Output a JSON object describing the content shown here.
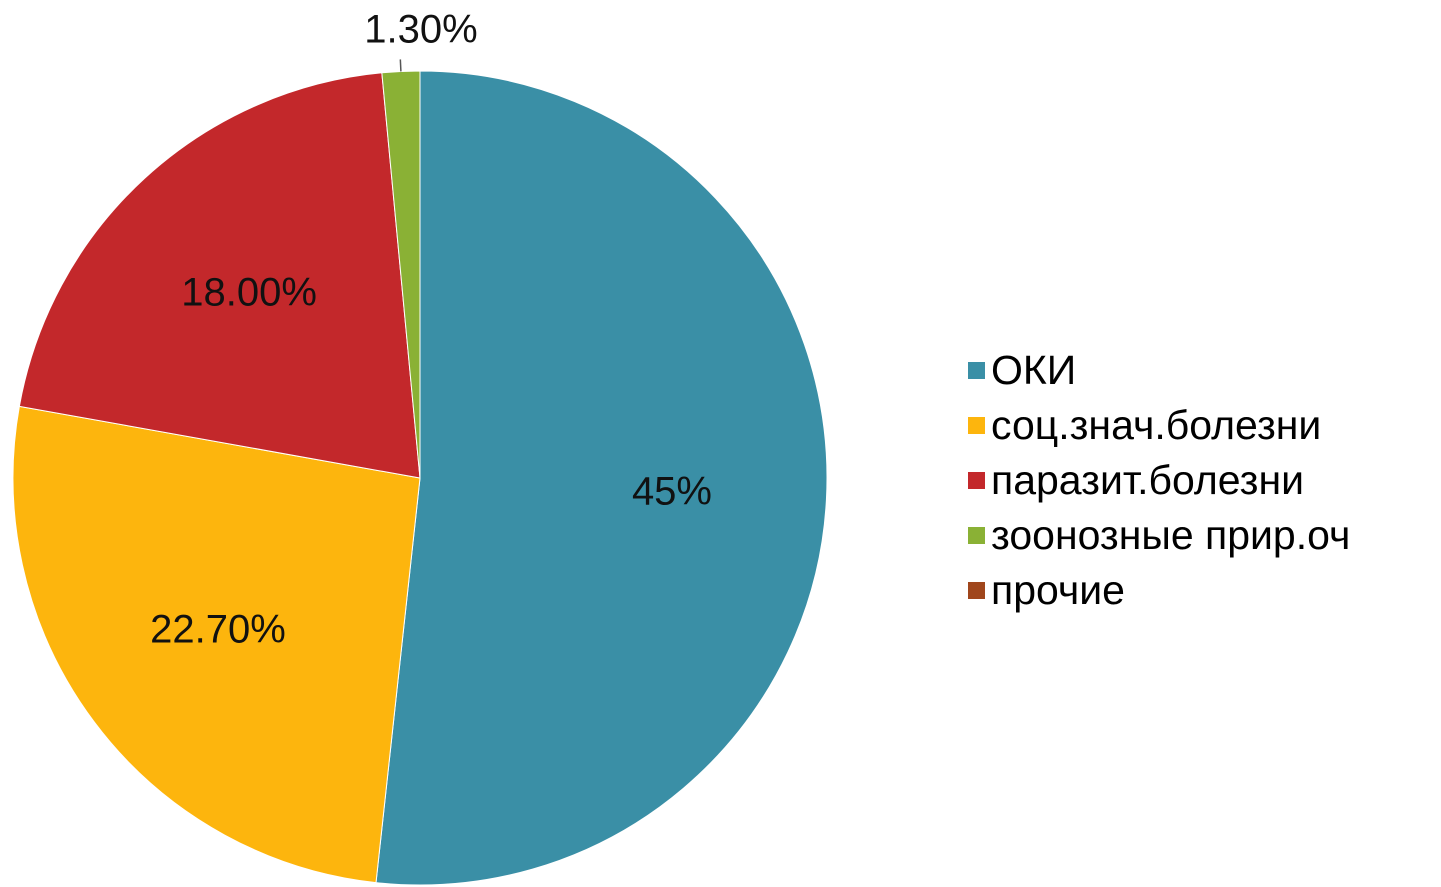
{
  "chart_data": {
    "type": "pie",
    "title": "",
    "categories": [
      "ОКИ",
      "соц.знач.болезни",
      "паразит.болезни",
      "зоонозные прир.оч",
      "прочие"
    ],
    "values": [
      45,
      22.7,
      18.0,
      1.3,
      0
    ],
    "data_labels": [
      "45%",
      "22.70%",
      "18.00%",
      "1.30%",
      ""
    ],
    "colors": [
      "#3A8FA6",
      "#FDB50D",
      "#C3282B",
      "#8AB135",
      "#A0461C"
    ],
    "start_angle_deg": 0,
    "direction": "clockwise",
    "legend_position": "right"
  }
}
